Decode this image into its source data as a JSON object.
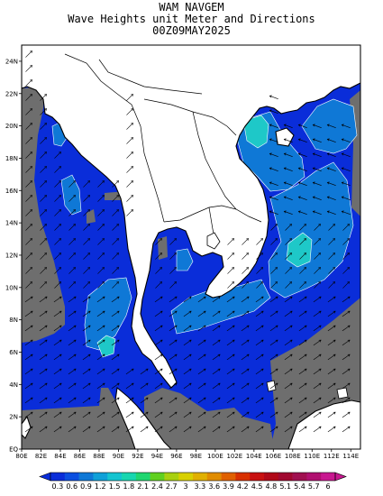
{
  "title": {
    "line1": "WAM NAVGEM",
    "line2": "Wave Heights unit Meter and Directions",
    "line3": "00Z09MAY2025"
  },
  "map": {
    "lon_range": [
      80,
      115
    ],
    "lat_range": [
      0,
      25
    ],
    "lon_ticks": [
      "80E",
      "82E",
      "84E",
      "86E",
      "88E",
      "90E",
      "92E",
      "94E",
      "96E",
      "98E",
      "100E",
      "102E",
      "104E",
      "106E",
      "108E",
      "110E",
      "112E",
      "114E"
    ],
    "lat_ticks": [
      "EQ",
      "2N",
      "4N",
      "6N",
      "8N",
      "10N",
      "12N",
      "14N",
      "16N",
      "18N",
      "20N",
      "22N",
      "24N"
    ],
    "colors": {
      "land": "#ffffff",
      "no_data": "#6e6e6e",
      "wave_low": "#0a2dd9",
      "wave_mid": "#0f78d6",
      "wave_high": "#1ec8c8",
      "coast": "#000000",
      "arrow": "#000000"
    }
  },
  "colorbar": {
    "labels": [
      "0.3",
      "0.6",
      "0.9",
      "1.2",
      "1.5",
      "1.8",
      "2.1",
      "2.4",
      "2.7",
      "3",
      "3.3",
      "3.6",
      "3.9",
      "4.2",
      "4.5",
      "4.8",
      "5.1",
      "5.4",
      "5.7",
      "6"
    ],
    "colors": [
      "#0a2dd9",
      "#0b4fe0",
      "#0f78d6",
      "#0fa0d8",
      "#14c4d0",
      "#18d6b0",
      "#20d670",
      "#60d020",
      "#a8d010",
      "#d8d000",
      "#e0b000",
      "#e08c00",
      "#e06000",
      "#d83000",
      "#c81010",
      "#b00818",
      "#a00830",
      "#a01050",
      "#b01070",
      "#c81890"
    ]
  }
}
